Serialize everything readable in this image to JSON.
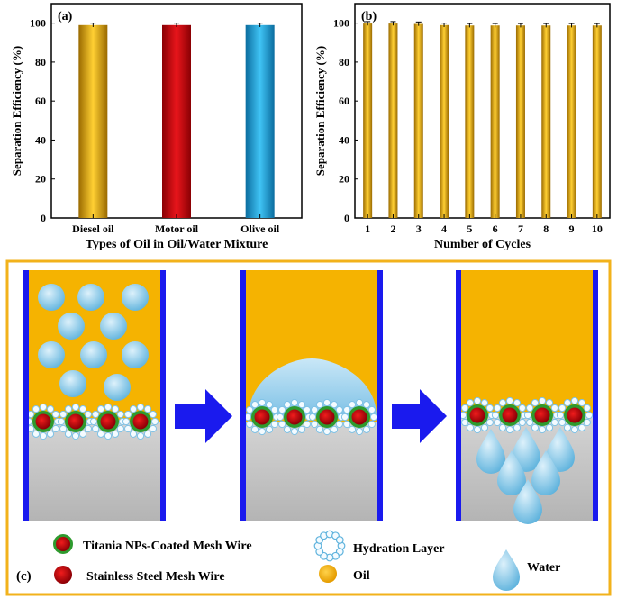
{
  "chart_data": [
    {
      "type": "bar",
      "panel_label": "(a)",
      "xlabel": "Types of Oil in Oil/Water Mixture",
      "ylabel": "Separation Efficiency (%)",
      "ylim": [
        0,
        110
      ],
      "yticks": [
        "0",
        "20",
        "40",
        "60",
        "80",
        "100"
      ],
      "categories": [
        "Diesel oil",
        "Motor oil",
        "Olive oil"
      ],
      "values": [
        99,
        99,
        99
      ],
      "errors": [
        1,
        1,
        1
      ],
      "colors": [
        "#e8a600",
        "#c8090f",
        "#1a9fd8"
      ]
    },
    {
      "type": "bar",
      "panel_label": "(b)",
      "xlabel": "Number of Cycles",
      "ylabel": "Separation Efficiency (%)",
      "ylim": [
        0,
        110
      ],
      "yticks": [
        "0",
        "20",
        "40",
        "60",
        "80",
        "100"
      ],
      "categories": [
        "1",
        "2",
        "3",
        "4",
        "5",
        "6",
        "7",
        "8",
        "9",
        "10"
      ],
      "values": [
        99.8,
        99.8,
        99.6,
        99,
        98.8,
        98.8,
        98.8,
        98.8,
        98.8,
        98.8
      ],
      "errors": [
        1,
        1,
        1,
        1,
        1,
        1,
        1,
        1,
        1,
        1
      ],
      "colors": [
        "#e8a600"
      ]
    }
  ],
  "panel_c": {
    "label": "(c)",
    "colors": {
      "oil": "#f5b301",
      "water_drop": "#9fd2ee",
      "steel": "#c8090f",
      "titania_coat": "#2e9a2e",
      "wall": "#1a1aee",
      "substrate": "#bfbfbf",
      "arrow": "#1a1aee",
      "frame": "#f2b21b"
    },
    "legend": [
      {
        "icon": "titania-coated-wire-icon",
        "label": "Titania NPs-Coated Mesh Wire"
      },
      {
        "icon": "stainless-steel-wire-icon",
        "label": "Stainless Steel Mesh Wire"
      },
      {
        "icon": "hydration-layer-icon",
        "label": "Hydration Layer"
      },
      {
        "icon": "oil-icon",
        "label": "Oil"
      },
      {
        "icon": "water-icon",
        "label": "Water"
      }
    ]
  }
}
